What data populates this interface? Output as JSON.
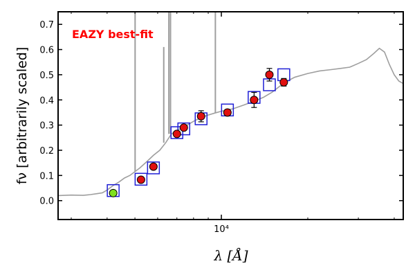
{
  "chart_data": {
    "type": "scatter",
    "title": "",
    "annotation": "EAZY best-fit",
    "xlabel": "λ [Å]",
    "ylabel": "fν [arbitrarily scaled]",
    "xscale": "log",
    "xlim": [
      2700,
      43000
    ],
    "ylim": [
      -0.075,
      0.75
    ],
    "y_ticks": [
      0.0,
      0.1,
      0.2,
      0.3,
      0.4,
      0.5,
      0.6,
      0.7
    ],
    "y_tick_labels": [
      "0.0",
      "0.1",
      "0.2",
      "0.3",
      "0.4",
      "0.5",
      "0.6",
      "0.7"
    ],
    "x_ticks": [
      10000
    ],
    "x_tick_labels": [
      "10⁴"
    ],
    "grid": false,
    "colors": {
      "template": "#9e9e9e",
      "model_box": "#1f1fd6",
      "observed": "#e01010",
      "highlight": "#80e020",
      "annotation": "#ff0000"
    },
    "template_spectrum": [
      [
        2700,
        0.02
      ],
      [
        3000,
        0.022
      ],
      [
        3300,
        0.021
      ],
      [
        3500,
        0.024
      ],
      [
        3700,
        0.028
      ],
      [
        3850,
        0.031
      ],
      [
        4000,
        0.042
      ],
      [
        4200,
        0.06
      ],
      [
        4400,
        0.074
      ],
      [
        4600,
        0.09
      ],
      [
        4800,
        0.1
      ],
      [
        5000,
        0.115
      ],
      [
        5200,
        0.13
      ],
      [
        5500,
        0.155
      ],
      [
        5800,
        0.18
      ],
      [
        6100,
        0.2
      ],
      [
        6400,
        0.23
      ],
      [
        6700,
        0.265
      ],
      [
        7000,
        0.278
      ],
      [
        7300,
        0.29
      ],
      [
        7600,
        0.3
      ],
      [
        8000,
        0.315
      ],
      [
        8500,
        0.33
      ],
      [
        9000,
        0.34
      ],
      [
        9500,
        0.348
      ],
      [
        10000,
        0.355
      ],
      [
        11000,
        0.365
      ],
      [
        12000,
        0.38
      ],
      [
        13000,
        0.395
      ],
      [
        14000,
        0.41
      ],
      [
        15000,
        0.43
      ],
      [
        16000,
        0.455
      ],
      [
        17000,
        0.475
      ],
      [
        18000,
        0.49
      ],
      [
        20000,
        0.505
      ],
      [
        22000,
        0.515
      ],
      [
        24000,
        0.52
      ],
      [
        26000,
        0.525
      ],
      [
        28000,
        0.53
      ],
      [
        30000,
        0.545
      ],
      [
        32000,
        0.56
      ],
      [
        34000,
        0.585
      ],
      [
        35500,
        0.605
      ],
      [
        37000,
        0.59
      ],
      [
        38500,
        0.54
      ],
      [
        40000,
        0.5
      ],
      [
        41500,
        0.475
      ],
      [
        43000,
        0.465
      ]
    ],
    "emission_lines": [
      {
        "x": 5007,
        "peak": 0.75
      },
      {
        "x": 6300,
        "peak": 0.61
      },
      {
        "x": 6563,
        "peak": 0.75
      },
      {
        "x": 6650,
        "peak": 0.75
      },
      {
        "x": 9530,
        "peak": 0.75
      }
    ],
    "model_photometry": [
      {
        "x": 4200,
        "y": 0.04
      },
      {
        "x": 5250,
        "y": 0.085
      },
      {
        "x": 5800,
        "y": 0.13
      },
      {
        "x": 7000,
        "y": 0.27
      },
      {
        "x": 7400,
        "y": 0.285
      },
      {
        "x": 8500,
        "y": 0.325
      },
      {
        "x": 10500,
        "y": 0.36
      },
      {
        "x": 13000,
        "y": 0.41
      },
      {
        "x": 14700,
        "y": 0.46
      },
      {
        "x": 16500,
        "y": 0.5
      }
    ],
    "observed_photometry": [
      {
        "x": 4200,
        "y": 0.03,
        "yerr": 0.01,
        "highlight": true
      },
      {
        "x": 5250,
        "y": 0.083,
        "yerr": 0.006,
        "highlight": false
      },
      {
        "x": 5800,
        "y": 0.135,
        "yerr": 0.006,
        "highlight": false
      },
      {
        "x": 7000,
        "y": 0.265,
        "yerr": 0.01,
        "highlight": false
      },
      {
        "x": 7400,
        "y": 0.29,
        "yerr": 0.01,
        "highlight": false
      },
      {
        "x": 8500,
        "y": 0.335,
        "yerr": 0.022,
        "highlight": false
      },
      {
        "x": 10500,
        "y": 0.35,
        "yerr": 0.012,
        "highlight": false
      },
      {
        "x": 13000,
        "y": 0.4,
        "yerr": 0.03,
        "highlight": false
      },
      {
        "x": 14700,
        "y": 0.5,
        "yerr": 0.025,
        "highlight": false
      },
      {
        "x": 16500,
        "y": 0.47,
        "yerr": 0.015,
        "highlight": false
      }
    ]
  }
}
